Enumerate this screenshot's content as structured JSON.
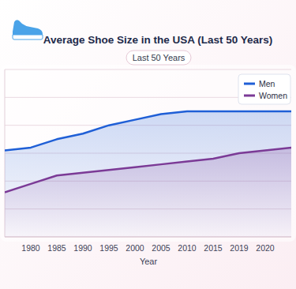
{
  "chart_data": {
    "type": "line",
    "title": "Average Shoe Size in the USA (Last 50 Years)",
    "subtitle": "Last 50 Years",
    "x_label": "Year",
    "categories": [
      null,
      "1980",
      "1985",
      "1990",
      "1995",
      "2000",
      "2005",
      "2010",
      "2015",
      "2019",
      "2020",
      null
    ],
    "series": [
      {
        "name": "Men",
        "color": "#1f5fd6",
        "values": [
          9.1,
          9.2,
          9.5,
          9.7,
          10.0,
          10.2,
          10.4,
          10.5,
          10.5,
          10.5,
          10.5,
          10.5
        ]
      },
      {
        "name": "Women",
        "color": "#7b3a96",
        "values": [
          7.6,
          7.9,
          8.2,
          8.3,
          8.4,
          8.5,
          8.6,
          8.7,
          8.8,
          9.0,
          9.1,
          9.2
        ]
      }
    ],
    "ylim": [
      6,
      12
    ],
    "yticks": [
      6,
      7,
      8,
      9,
      10,
      11,
      12
    ],
    "grid": true,
    "legend": "top-right",
    "tick_labels": "x"
  }
}
